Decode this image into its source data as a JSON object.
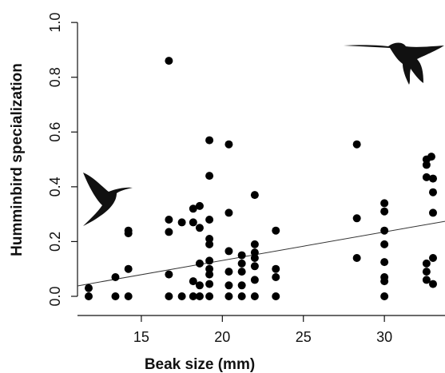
{
  "chart_data": {
    "type": "scatter",
    "x_label": "Beak size (mm)",
    "y_label": "Humminbird specialization",
    "color": "#000000",
    "x": [
      11.75,
      11.75,
      13.4,
      13.4,
      14.2,
      14.2,
      14.2,
      14.2,
      16.7,
      16.7,
      16.7,
      16.7,
      16.7,
      17.5,
      17.5,
      18.2,
      18.2,
      18.2,
      18.2,
      18.6,
      18.6,
      18.6,
      18.6,
      18.6,
      19.2,
      19.2,
      19.2,
      19.2,
      19.2,
      19.2,
      19.2,
      19.2,
      19.2,
      19.2,
      20.4,
      20.4,
      20.4,
      20.4,
      20.4,
      20.4,
      21.2,
      21.2,
      21.2,
      21.2,
      21.2,
      22,
      22,
      22,
      22,
      22,
      22,
      22,
      23.3,
      23.3,
      23.3,
      23.3,
      28.3,
      28.3,
      28.3,
      30,
      30,
      30,
      30,
      30,
      30,
      30,
      30,
      32.6,
      32.6,
      32.9,
      32.6,
      33,
      33,
      33,
      33,
      32.6,
      32.6,
      32.6,
      33
    ],
    "values": [
      0,
      0.03,
      0,
      0.07,
      0,
      0.1,
      0.23,
      0.24,
      0.86,
      0.28,
      0.235,
      0.08,
      0,
      0.27,
      0,
      0.32,
      0.27,
      0.055,
      0,
      0.33,
      0.25,
      0.12,
      0.04,
      0,
      0.57,
      0.44,
      0.28,
      0.21,
      0.19,
      0.13,
      0.1,
      0.08,
      0.045,
      0,
      0.555,
      0.305,
      0.165,
      0.09,
      0.04,
      0,
      0.15,
      0.12,
      0.09,
      0.04,
      0,
      0.37,
      0.19,
      0.16,
      0.14,
      0.11,
      0.06,
      0,
      0.24,
      0.1,
      0.07,
      0,
      0.555,
      0.285,
      0.14,
      0.34,
      0.31,
      0.24,
      0.19,
      0.125,
      0.07,
      0.055,
      0,
      0.5,
      0.48,
      0.51,
      0.435,
      0.43,
      0.38,
      0.305,
      0.14,
      0.12,
      0.09,
      0.06,
      0.045
    ],
    "trend": {
      "x": [
        11.06,
        33.74
      ],
      "y": [
        0.038,
        0.274
      ]
    },
    "xlim": [
      11.06,
      33.74
    ],
    "xticks": [
      15,
      20,
      25,
      30
    ],
    "ylim": [
      -0.07,
      1.05
    ],
    "yticks": [
      {
        "value": 0,
        "label": "0.0"
      },
      0.2,
      0.4,
      0.6,
      0.8,
      {
        "value": 1,
        "label": "1.0"
      }
    ]
  }
}
